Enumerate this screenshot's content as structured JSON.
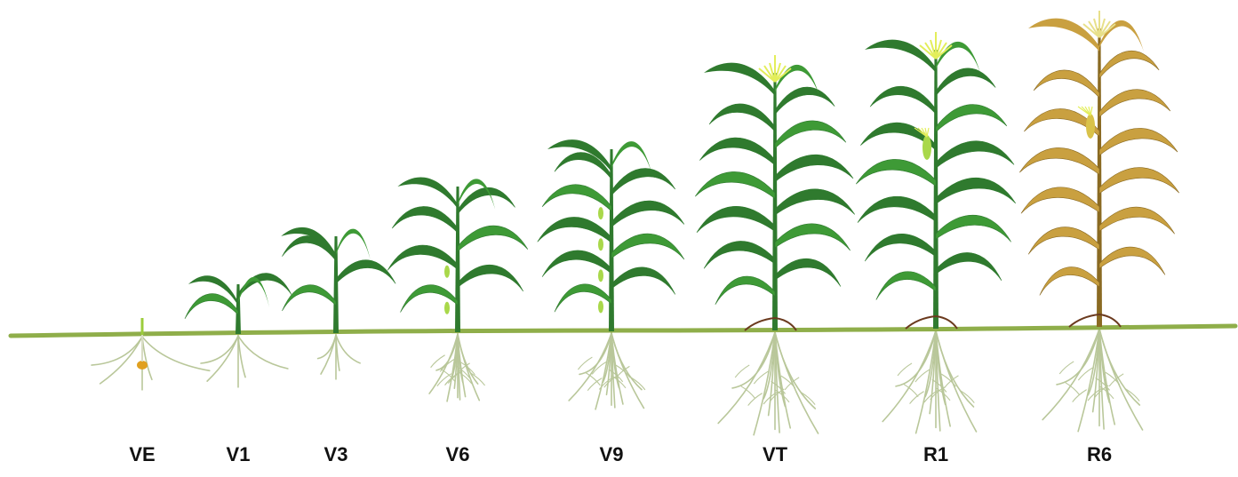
{
  "stages": [
    {
      "label": "VE",
      "kind": "seedling",
      "leaves": 0,
      "tassel": false,
      "silk": false,
      "mature": false
    },
    {
      "label": "V1",
      "kind": "young",
      "leaves": 1,
      "tassel": false,
      "silk": false,
      "mature": false
    },
    {
      "label": "V3",
      "kind": "young",
      "leaves": 3,
      "tassel": false,
      "silk": false,
      "mature": false
    },
    {
      "label": "V6",
      "kind": "vegetative",
      "leaves": 6,
      "tassel": false,
      "silk": false,
      "mature": false
    },
    {
      "label": "V9",
      "kind": "vegetative",
      "leaves": 9,
      "tassel": false,
      "silk": false,
      "mature": false
    },
    {
      "label": "VT",
      "kind": "tasseling",
      "leaves": 12,
      "tassel": true,
      "silk": false,
      "mature": false
    },
    {
      "label": "R1",
      "kind": "silking",
      "leaves": 12,
      "tassel": true,
      "silk": true,
      "mature": false
    },
    {
      "label": "R6",
      "kind": "maturity",
      "leaves": 12,
      "tassel": true,
      "silk": true,
      "mature": true
    }
  ],
  "colors": {
    "ground": "#8fae4a",
    "leaf_dark": "#2f7a2e",
    "leaf_mid": "#3e9a36",
    "leaf_light": "#a9d84a",
    "tassel": "#e3ee5a",
    "root": "#b9c79a",
    "mature_leaf": "#c9a040",
    "mature_dark": "#8a6a22",
    "brace_root": "#6b3a1e",
    "label": "#111111"
  }
}
